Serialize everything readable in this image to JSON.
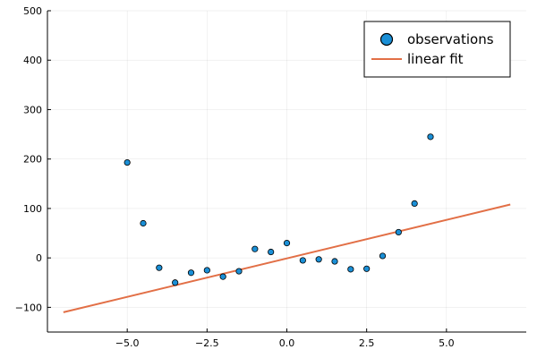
{
  "chart_data": {
    "type": "scatter",
    "title": "",
    "xlabel": "",
    "ylabel": "",
    "xlim": [
      -7.5,
      7.5
    ],
    "ylim": [
      -150,
      500
    ],
    "grid": true,
    "legend_position": "top-right",
    "x_ticks": [
      -5.0,
      -2.5,
      0.0,
      2.5,
      5.0
    ],
    "x_tick_labels": [
      "−5.0",
      "−2.5",
      "0.0",
      "2.5",
      "5.0"
    ],
    "y_ticks": [
      -100,
      0,
      100,
      200,
      300,
      400,
      500
    ],
    "y_tick_labels": [
      "−100",
      "0",
      "100",
      "200",
      "300",
      "400",
      "500"
    ],
    "series": [
      {
        "name": "observations",
        "kind": "scatter",
        "color": "#1a8fd6",
        "x": [
          -5.0,
          -4.5,
          -4.0,
          -3.5,
          -3.0,
          -2.5,
          -2.0,
          -1.5,
          -1.0,
          -0.5,
          0.0,
          0.5,
          1.0,
          1.5,
          2.0,
          2.5,
          3.0,
          3.5,
          4.0,
          4.5
        ],
        "y": [
          193,
          70,
          -20,
          -50,
          -30,
          -25,
          -38,
          -27,
          18,
          12,
          30,
          -5,
          -3,
          -7,
          -23,
          -22,
          4,
          52,
          110,
          245
        ]
      },
      {
        "name": "linear fit",
        "kind": "line",
        "color": "#e26f46",
        "x": [
          -7.0,
          7.0
        ],
        "y": [
          -110,
          108
        ]
      }
    ]
  }
}
